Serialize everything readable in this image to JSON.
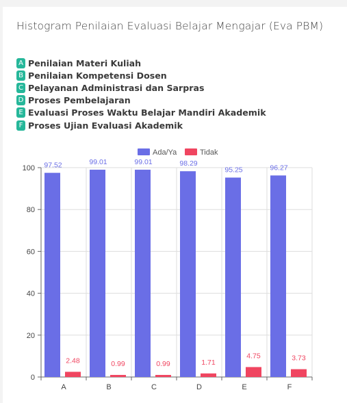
{
  "page": {
    "title": "Histogram Penilaian Evaluasi Belajar Mengajar (Eva PBM)"
  },
  "legend_items": [
    {
      "letter": "A",
      "label": "Penilaian Materi Kuliah"
    },
    {
      "letter": "B",
      "label": "Penilaian Kompetensi Dosen"
    },
    {
      "letter": "C",
      "label": "Pelayanan Administrasi dan Sarpras"
    },
    {
      "letter": "D",
      "label": "Proses Pembelajaran"
    },
    {
      "letter": "E",
      "label": "Evaluasi Proses Waktu Belajar Mandiri Akademik"
    },
    {
      "letter": "F",
      "label": "Proses Ujian Evaluasi Akademik"
    }
  ],
  "colors": {
    "badge": "#26b79a",
    "series_ada": "#6a6ee6",
    "series_tidak": "#f04560"
  },
  "chart_data": {
    "type": "bar",
    "categories": [
      "A",
      "B",
      "C",
      "D",
      "E",
      "F"
    ],
    "series": [
      {
        "name": "Ada/Ya",
        "values": [
          97.52,
          99.01,
          99.01,
          98.29,
          95.25,
          96.27
        ],
        "color": "#6a6ee6"
      },
      {
        "name": "Tidak",
        "values": [
          2.48,
          0.99,
          0.99,
          1.71,
          4.75,
          3.73
        ],
        "color": "#f04560"
      }
    ],
    "ylim": [
      0,
      100
    ],
    "yticks": [
      0,
      20,
      40,
      60,
      80,
      100
    ],
    "grid": true,
    "legend_position": "top-center",
    "data_labels": true
  }
}
